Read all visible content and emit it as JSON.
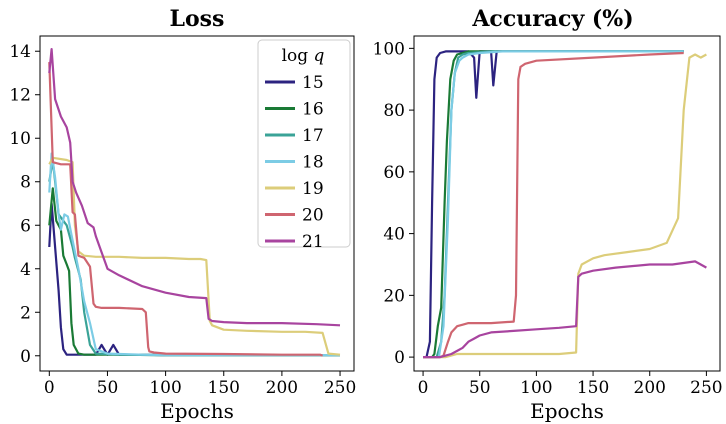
{
  "chart_data": [
    {
      "type": "line",
      "title": "Loss",
      "xlabel": "Epochs",
      "ylabel": "",
      "xlim": [
        -8,
        262
      ],
      "ylim": [
        -0.7,
        14.7
      ],
      "xticks": [
        0,
        50,
        100,
        150,
        200,
        250
      ],
      "yticks": [
        0,
        2,
        4,
        6,
        8,
        10,
        12,
        14
      ],
      "grid": false,
      "legend": {
        "title_prefix": "log ",
        "title_var": "q",
        "placement": "top-right"
      },
      "series": [
        {
          "name": "15",
          "color": "#2c2380",
          "x": [
            0,
            2,
            5,
            8,
            10,
            12,
            15,
            20,
            30,
            40,
            45,
            50,
            55,
            60,
            80,
            100,
            150,
            200,
            250
          ],
          "y": [
            5.0,
            7.0,
            5.0,
            3.0,
            1.3,
            0.3,
            0.05,
            0.05,
            0.05,
            0.05,
            0.5,
            0.05,
            0.5,
            0.05,
            0.05,
            0.03,
            0.03,
            0.03,
            0.03
          ]
        },
        {
          "name": "16",
          "color": "#1a7a35",
          "x": [
            0,
            3,
            6,
            10,
            12,
            15,
            17,
            19,
            21,
            25,
            30,
            40,
            60,
            100,
            150,
            200,
            250
          ],
          "y": [
            6.0,
            7.7,
            6.2,
            5.8,
            4.6,
            4.2,
            3.9,
            1.5,
            0.5,
            0.1,
            0.05,
            0.05,
            0.05,
            0.03,
            0.03,
            0.03,
            0.03
          ]
        },
        {
          "name": "17",
          "color": "#3aa397",
          "x": [
            0,
            3,
            8,
            15,
            20,
            22,
            25,
            27,
            30,
            35,
            40,
            60,
            100,
            150,
            200,
            250
          ],
          "y": [
            8.0,
            9.0,
            6.5,
            6.0,
            5.0,
            4.5,
            3.9,
            3.5,
            2.0,
            0.5,
            0.1,
            0.05,
            0.03,
            0.03,
            0.03,
            0.03
          ]
        },
        {
          "name": "18",
          "color": "#7ccce5",
          "x": [
            0,
            2,
            5,
            8,
            10,
            13,
            16,
            20,
            25,
            30,
            35,
            40,
            50,
            80,
            100,
            150,
            200,
            250
          ],
          "y": [
            7.5,
            9.3,
            8.2,
            6.5,
            5.8,
            6.5,
            6.4,
            5.3,
            4.0,
            2.5,
            1.5,
            0.3,
            0.1,
            0.05,
            0.03,
            0.03,
            0.03,
            0.03
          ]
        },
        {
          "name": "19",
          "color": "#dccd7a",
          "x": [
            0,
            3,
            15,
            20,
            22,
            25,
            30,
            40,
            60,
            80,
            100,
            120,
            130,
            135,
            138,
            140,
            150,
            170,
            200,
            220,
            235,
            240,
            250
          ],
          "y": [
            8.8,
            9.1,
            9.0,
            8.9,
            6.0,
            4.8,
            4.6,
            4.55,
            4.55,
            4.5,
            4.5,
            4.45,
            4.45,
            4.4,
            1.6,
            1.4,
            1.2,
            1.15,
            1.1,
            1.1,
            1.05,
            0.1,
            0.05
          ]
        },
        {
          "name": "20",
          "color": "#cf6570",
          "x": [
            0,
            3,
            10,
            18,
            20,
            22,
            25,
            30,
            35,
            38,
            40,
            45,
            60,
            80,
            83,
            85,
            86,
            90,
            100,
            150,
            200,
            230,
            233,
            235
          ],
          "y": [
            13.5,
            8.9,
            8.8,
            8.8,
            6.6,
            6.5,
            4.6,
            4.5,
            4.1,
            2.4,
            2.25,
            2.2,
            2.2,
            2.15,
            2.0,
            0.4,
            0.2,
            0.15,
            0.1,
            0.08,
            0.05,
            0.05,
            0.05,
            0.0
          ]
        },
        {
          "name": "21",
          "color": "#a8449f",
          "x": [
            0,
            2,
            5,
            10,
            15,
            18,
            20,
            23,
            28,
            33,
            38,
            40,
            50,
            60,
            80,
            100,
            120,
            135,
            137,
            140,
            150,
            170,
            200,
            230,
            250
          ],
          "y": [
            13.0,
            14.1,
            11.8,
            11.0,
            10.5,
            9.8,
            8.0,
            7.5,
            6.9,
            6.1,
            5.9,
            5.5,
            4.0,
            3.7,
            3.2,
            2.9,
            2.7,
            2.65,
            1.7,
            1.6,
            1.55,
            1.5,
            1.5,
            1.45,
            1.4
          ]
        }
      ]
    },
    {
      "type": "line",
      "title": "Accuracy (%)",
      "xlabel": "Epochs",
      "ylabel": "",
      "xlim": [
        -8,
        262
      ],
      "ylim": [
        -4.5,
        104
      ],
      "xticks": [
        0,
        50,
        100,
        150,
        200,
        250
      ],
      "yticks": [
        0,
        20,
        40,
        60,
        80,
        100
      ],
      "grid": false,
      "series": [
        {
          "name": "15",
          "color": "#2c2380",
          "x": [
            0,
            3,
            6,
            8,
            10,
            12,
            15,
            20,
            30,
            40,
            45,
            47,
            50,
            55,
            60,
            62,
            65,
            80,
            100,
            150,
            200,
            230
          ],
          "y": [
            0,
            0,
            5,
            50,
            90,
            97,
            98.5,
            99,
            99,
            99,
            97,
            84,
            99,
            99,
            99,
            88,
            99,
            99,
            99,
            99,
            99,
            99
          ]
        },
        {
          "name": "16",
          "color": "#1a7a35",
          "x": [
            0,
            8,
            10,
            13,
            16,
            19,
            21,
            24,
            27,
            30,
            40,
            60,
            100,
            150,
            200,
            230
          ],
          "y": [
            0,
            0,
            1,
            10,
            16,
            50,
            70,
            90,
            96,
            98,
            99,
            99,
            99,
            99,
            99,
            99
          ]
        },
        {
          "name": "17",
          "color": "#3aa397",
          "x": [
            0,
            12,
            16,
            19,
            22,
            25,
            28,
            31,
            35,
            40,
            60,
            100,
            150,
            200,
            230
          ],
          "y": [
            0,
            0,
            5,
            20,
            50,
            80,
            92,
            97,
            98,
            98.5,
            99,
            99,
            99,
            99,
            99
          ]
        },
        {
          "name": "18",
          "color": "#7ccce5",
          "x": [
            0,
            14,
            18,
            22,
            25,
            28,
            32,
            35,
            40,
            50,
            70,
            100,
            150,
            200,
            230
          ],
          "y": [
            0,
            0,
            10,
            45,
            80,
            92,
            96,
            97,
            98,
            98.5,
            99,
            99,
            99,
            99,
            99
          ]
        },
        {
          "name": "19",
          "color": "#dccd7a",
          "x": [
            0,
            20,
            30,
            50,
            80,
            100,
            120,
            135,
            137,
            140,
            150,
            160,
            180,
            200,
            215,
            225,
            230,
            235,
            240,
            245,
            250
          ],
          "y": [
            0,
            0,
            1,
            1,
            1,
            1,
            1,
            1.5,
            27,
            30,
            32,
            33,
            34,
            35,
            37,
            45,
            80,
            97,
            98,
            97,
            98
          ]
        },
        {
          "name": "20",
          "color": "#cf6570",
          "x": [
            0,
            15,
            18,
            22,
            25,
            30,
            35,
            40,
            45,
            60,
            80,
            82,
            84,
            86,
            90,
            100,
            150,
            200,
            230
          ],
          "y": [
            0,
            0,
            0.5,
            5,
            8,
            10,
            10.5,
            11,
            11,
            11,
            11.5,
            20,
            90,
            94,
            95,
            96,
            97,
            98,
            98.5
          ]
        },
        {
          "name": "21",
          "color": "#a8449f",
          "x": [
            0,
            15,
            20,
            25,
            30,
            35,
            40,
            45,
            50,
            60,
            80,
            100,
            120,
            135,
            137,
            140,
            150,
            170,
            200,
            220,
            240,
            250
          ],
          "y": [
            0,
            0,
            0.5,
            1,
            2,
            3,
            5,
            6,
            7,
            8,
            8.5,
            9,
            9.5,
            10,
            26,
            27,
            28,
            29,
            30,
            30,
            31,
            29
          ]
        }
      ]
    }
  ]
}
